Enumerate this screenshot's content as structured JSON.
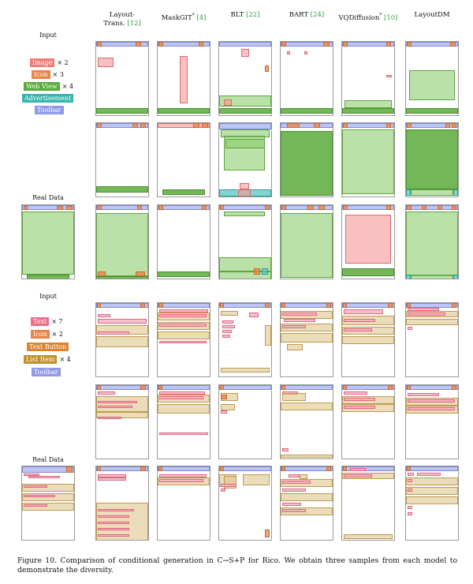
{
  "columns": [
    {
      "name": "Layout-",
      "name2": "Trans.",
      "ref": "[12]",
      "sup": ""
    },
    {
      "name": "MaskGIT",
      "name2": "",
      "ref": "[4]",
      "sup": "*"
    },
    {
      "name": "BLT",
      "name2": "",
      "ref": "[22]",
      "sup": ""
    },
    {
      "name": "BART",
      "name2": "",
      "ref": "[24]",
      "sup": ""
    },
    {
      "name": "VQDiffusion",
      "name2": "",
      "ref": "[10]",
      "sup": "*"
    },
    {
      "name": "LayoutDM",
      "name2": "",
      "ref": "",
      "sup": ""
    }
  ],
  "side_labels": {
    "input": "Input",
    "real": "Real Data"
  },
  "legend_top": [
    {
      "label": "Image",
      "mult": "× 2",
      "color": "#ee7c7a"
    },
    {
      "label": "Icon",
      "mult": "× 3",
      "color": "#e8854a"
    },
    {
      "label": "Web View",
      "mult": "× 4",
      "color": "#5aaa3c"
    },
    {
      "label": "Advertisement",
      "mult": "",
      "color": "#36b3ad"
    },
    {
      "label": "Toolbar",
      "mult": "",
      "color": "#8e9ae6"
    }
  ],
  "legend_bottom": [
    {
      "label": "Text",
      "mult": "× 7",
      "color": "#ec6f8a"
    },
    {
      "label": "Icon",
      "mult": "× 2",
      "color": "#e8854a"
    },
    {
      "label": "Text Button",
      "mult": "",
      "color": "#d98535"
    },
    {
      "label": "List Item",
      "mult": "× 4",
      "color": "#c49030"
    },
    {
      "label": "Toolbar",
      "mult": "",
      "color": "#8e9ae6"
    }
  ],
  "caption": "Figure 10. Comparison of conditional generation in C→S+P for Rico. We obtain three samples from each model to demonstrate the diversity."
}
